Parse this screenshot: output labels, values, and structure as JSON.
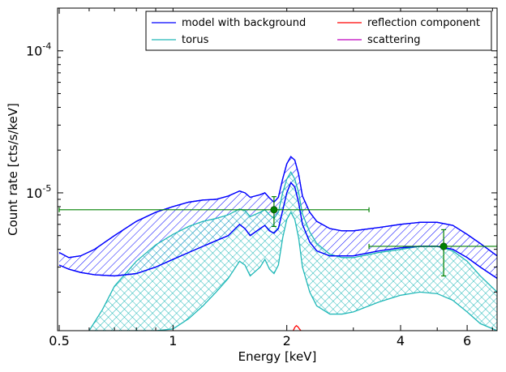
{
  "chart_data": {
    "type": "line",
    "xlabel": "Energy [keV]",
    "ylabel": "Count rate [cts/s/keV]",
    "xscale": "log",
    "yscale": "log",
    "xlim": [
      0.495,
      7.2
    ],
    "ylim": [
      1.07e-06,
      0.0002
    ],
    "x_ticks": [
      {
        "value": 0.5,
        "label": "0.5"
      },
      {
        "value": 1,
        "label": "1"
      },
      {
        "value": 2,
        "label": "2"
      },
      {
        "value": 4,
        "label": "4"
      },
      {
        "value": 6,
        "label": "6"
      }
    ],
    "y_ticks": [
      {
        "value": 1e-05,
        "base": "10",
        "exp": "-5"
      },
      {
        "value": 0.0001,
        "base": "10",
        "exp": "-4"
      }
    ],
    "legend": {
      "placement": "top-right",
      "columns": 2
    },
    "colors": {
      "model": "#0000ff",
      "torus": "#20b8b8",
      "reflection": "#ff0000",
      "scattering": "#bf00bf",
      "data": "#008000"
    },
    "series": [
      {
        "name": "model with background",
        "color": "#0000ff",
        "x": [
          0.5,
          0.53,
          0.57,
          0.62,
          0.7,
          0.8,
          0.9,
          1.0,
          1.1,
          1.2,
          1.3,
          1.4,
          1.5,
          1.55,
          1.6,
          1.7,
          1.75,
          1.8,
          1.85,
          1.9,
          1.95,
          2.0,
          2.05,
          2.1,
          2.15,
          2.2,
          2.3,
          2.4,
          2.6,
          2.8,
          3.0,
          3.5,
          4.0,
          4.5,
          5.0,
          5.5,
          6.0,
          6.5,
          7.2
        ],
        "upper": [
          3.8e-06,
          3.5e-06,
          3.6e-06,
          4e-06,
          5e-06,
          6.3e-06,
          7.3e-06,
          8e-06,
          8.6e-06,
          8.9e-06,
          9e-06,
          9.5e-06,
          1.03e-05,
          1e-05,
          9.3e-06,
          9.7e-06,
          1e-05,
          9.2e-06,
          8.6e-06,
          9.3e-06,
          1.25e-05,
          1.6e-05,
          1.8e-05,
          1.7e-05,
          1.35e-05,
          9.5e-06,
          7.3e-06,
          6.3e-06,
          5.6e-06,
          5.4e-06,
          5.4e-06,
          5.7e-06,
          6e-06,
          6.2e-06,
          6.2e-06,
          5.9e-06,
          5.1e-06,
          4.4e-06,
          3.6e-06
        ],
        "lower": [
          3.1e-06,
          2.9e-06,
          2.75e-06,
          2.65e-06,
          2.6e-06,
          2.7e-06,
          3e-06,
          3.4e-06,
          3.8e-06,
          4.2e-06,
          4.6e-06,
          5e-06,
          6e-06,
          5.6e-06,
          5e-06,
          5.6e-06,
          5.9e-06,
          5.4e-06,
          5.2e-06,
          5.6e-06,
          7.5e-06,
          1e-05,
          1.18e-05,
          1.1e-05,
          8.5e-06,
          6e-06,
          4.5e-06,
          3.9e-06,
          3.6e-06,
          3.6e-06,
          3.6e-06,
          3.9e-06,
          4.1e-06,
          4.2e-06,
          4.2e-06,
          4e-06,
          3.5e-06,
          3e-06,
          2.5e-06
        ]
      },
      {
        "name": "torus",
        "color": "#20b8b8",
        "x": [
          0.6,
          0.65,
          0.7,
          0.8,
          0.9,
          1.0,
          1.1,
          1.2,
          1.3,
          1.4,
          1.5,
          1.55,
          1.6,
          1.7,
          1.75,
          1.8,
          1.85,
          1.9,
          1.95,
          2.0,
          2.05,
          2.1,
          2.15,
          2.2,
          2.3,
          2.4,
          2.6,
          2.8,
          3.0,
          3.5,
          4.0,
          4.5,
          5.0,
          5.5,
          6.0,
          6.5,
          7.2
        ],
        "upper": [
          1.07e-06,
          1.5e-06,
          2.2e-06,
          3.3e-06,
          4.3e-06,
          5.1e-06,
          5.8e-06,
          6.3e-06,
          6.6e-06,
          7e-06,
          7.7e-06,
          7.5e-06,
          6.8e-06,
          7.3e-06,
          7.6e-06,
          7e-06,
          6.6e-06,
          7.3e-06,
          1e-05,
          1.25e-05,
          1.4e-05,
          1.25e-05,
          1e-05,
          7.1e-06,
          5.3e-06,
          4.4e-06,
          3.7e-06,
          3.5e-06,
          3.5e-06,
          3.8e-06,
          4e-06,
          4.2e-06,
          4.2e-06,
          3.9e-06,
          3.3e-06,
          2.6e-06,
          2e-06
        ],
        "lower": [
          1.07e-06,
          1.07e-06,
          1.07e-06,
          1.07e-06,
          1.07e-06,
          1.1e-06,
          1.3e-06,
          1.6e-06,
          2e-06,
          2.5e-06,
          3.3e-06,
          3.1e-06,
          2.6e-06,
          3e-06,
          3.4e-06,
          2.9e-06,
          2.7e-06,
          3.1e-06,
          4.8e-06,
          6.5e-06,
          7.3e-06,
          6.5e-06,
          4.8e-06,
          3e-06,
          2e-06,
          1.6e-06,
          1.4e-06,
          1.4e-06,
          1.45e-06,
          1.7e-06,
          1.9e-06,
          2e-06,
          1.95e-06,
          1.75e-06,
          1.45e-06,
          1.2e-06,
          1.07e-06
        ]
      },
      {
        "name": "reflection component",
        "color": "#ff0000",
        "x": [
          2.08,
          2.1,
          2.12,
          2.14,
          2.16,
          2.18
        ],
        "y": [
          1.07e-06,
          1.13e-06,
          1.16e-06,
          1.14e-06,
          1.1e-06,
          1.07e-06
        ]
      },
      {
        "name": "scattering",
        "color": "#bf00bf",
        "x": [],
        "y": []
      }
    ],
    "data_points": [
      {
        "x": 1.85,
        "y": 7.6e-06,
        "xerr": [
          0.5,
          3.3
        ],
        "yerr": [
          5.8e-06,
          9.4e-06
        ]
      },
      {
        "x": 5.2,
        "y": 4.2e-06,
        "xerr": [
          3.3,
          7.2
        ],
        "yerr": [
          2.6e-06,
          5.5e-06
        ]
      }
    ]
  }
}
